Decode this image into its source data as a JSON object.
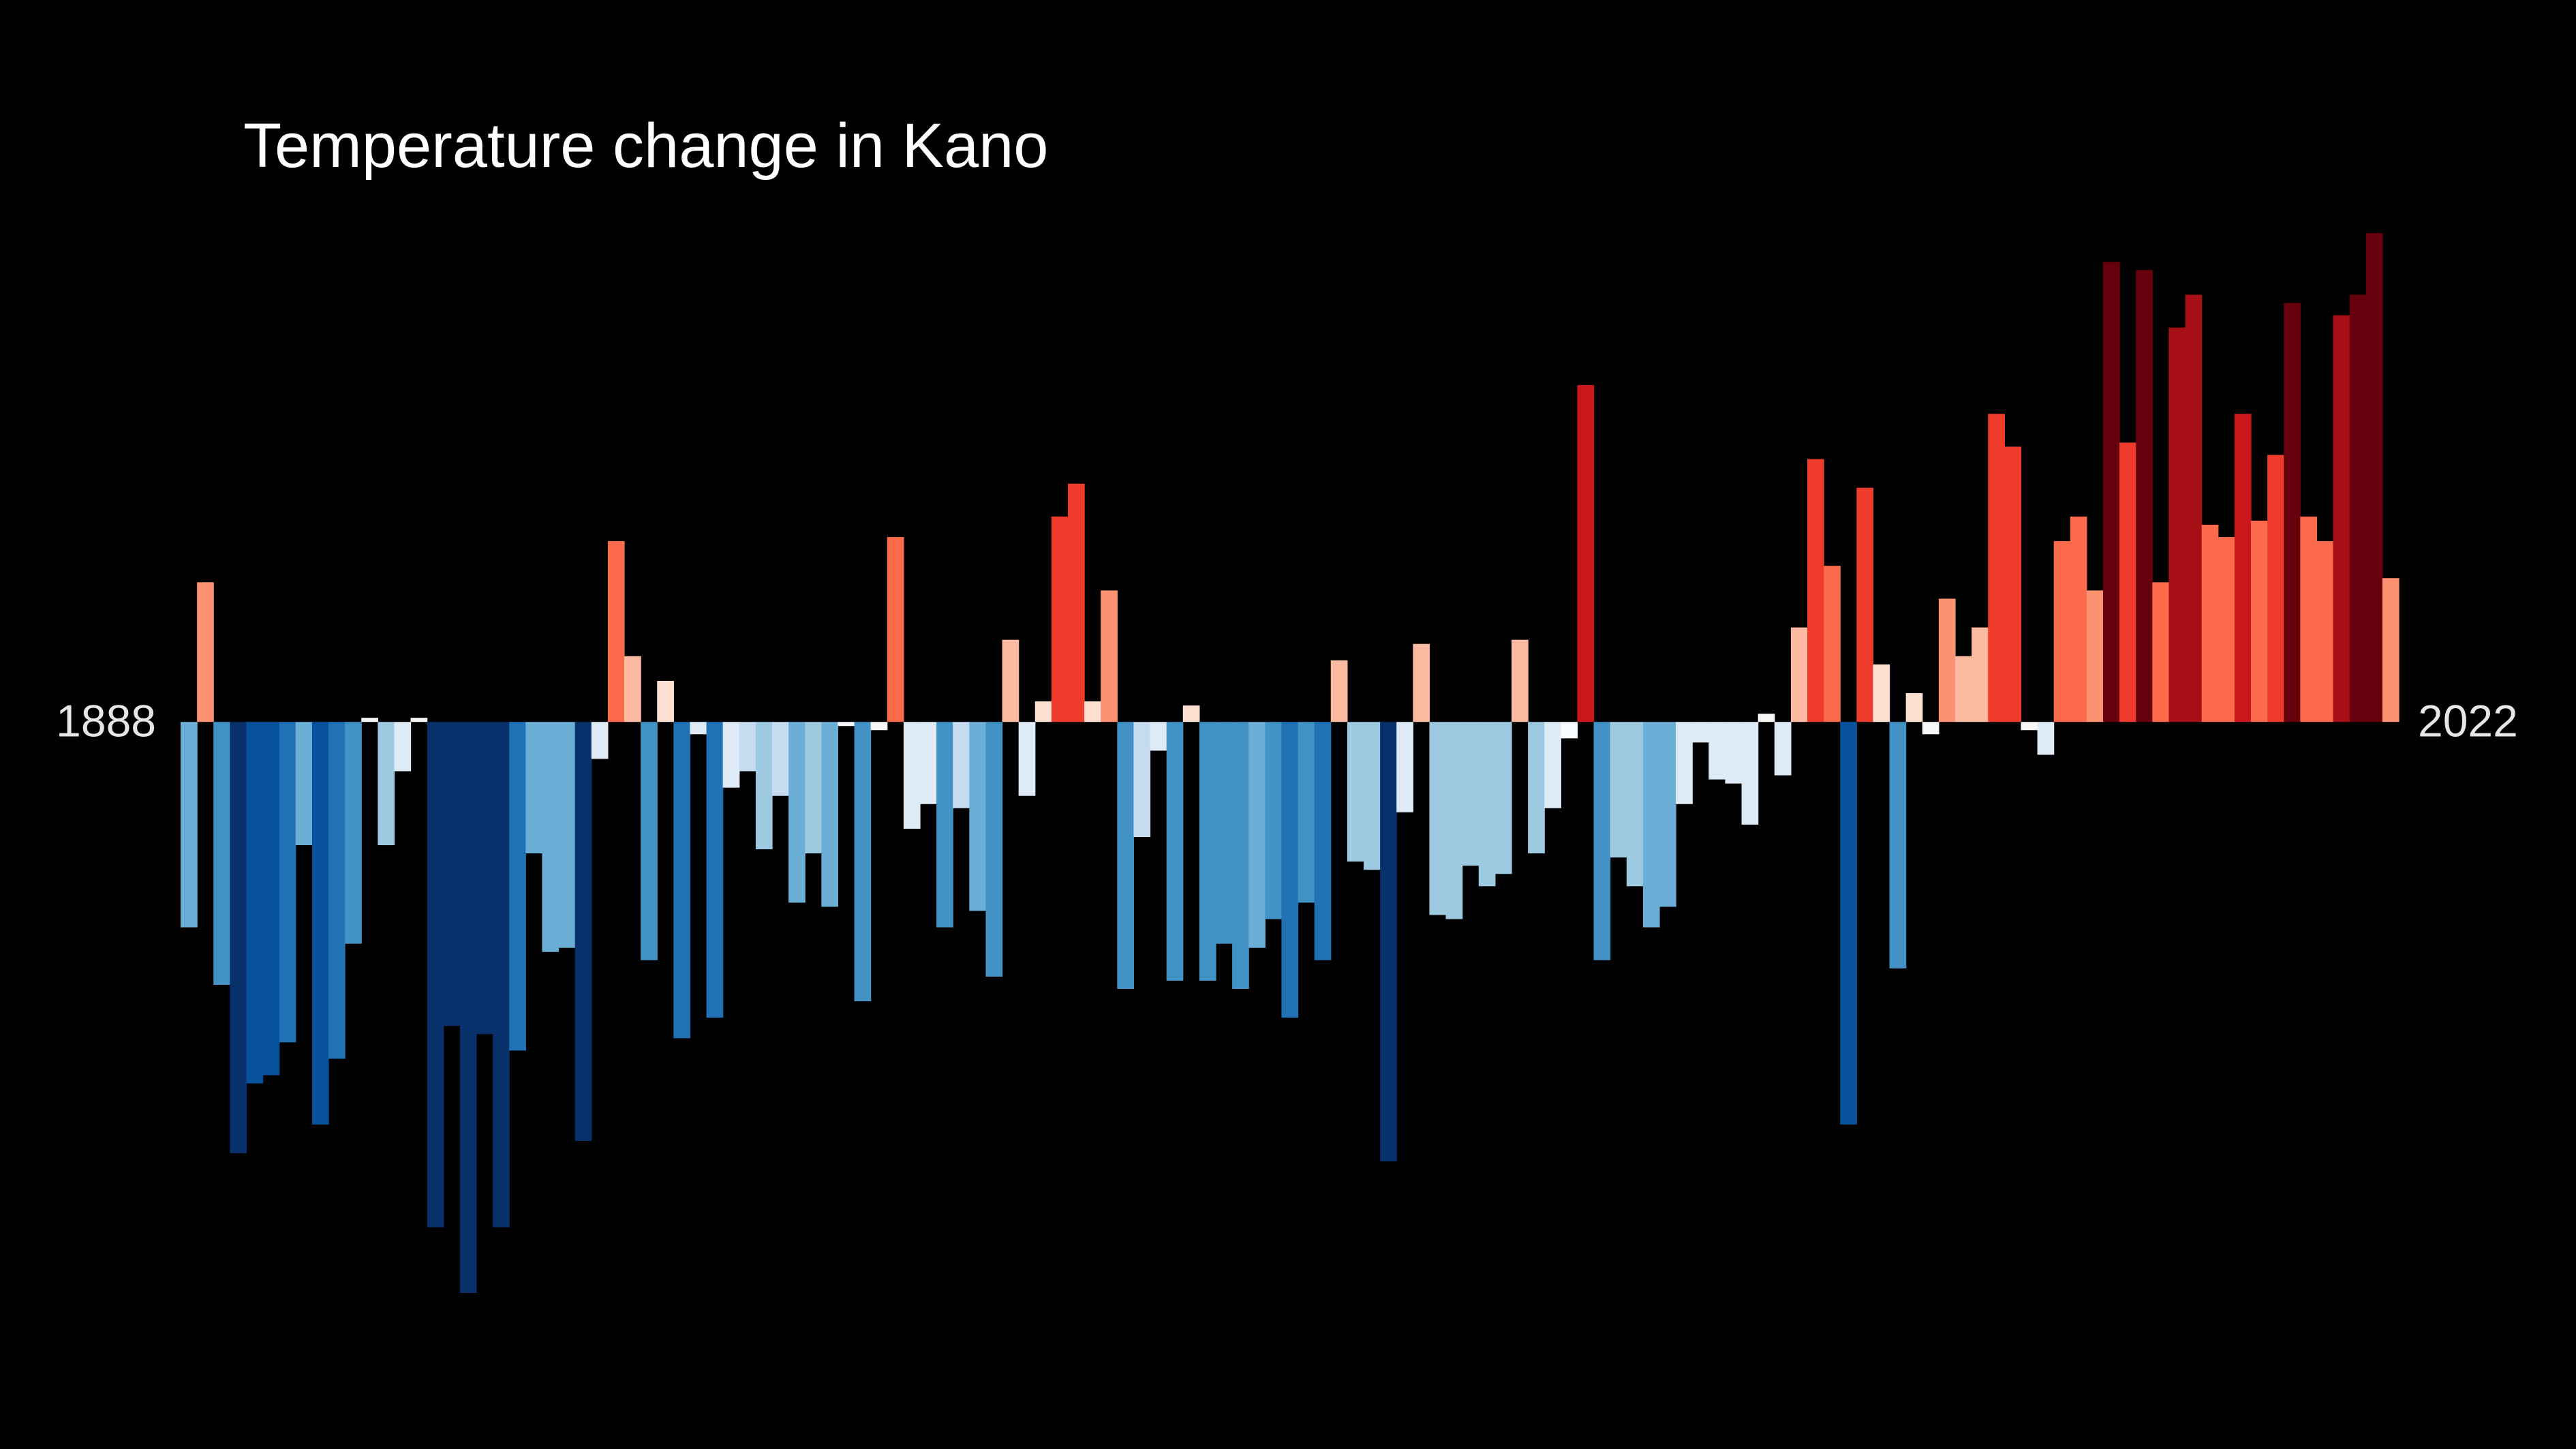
{
  "chart_data": {
    "type": "bar",
    "title": "Temperature change in Kano",
    "categories": [
      "1888",
      null,
      null,
      null,
      null,
      null,
      null,
      null,
      null,
      null,
      null,
      null,
      null,
      null,
      null,
      null,
      null,
      null,
      null,
      null,
      null,
      null,
      null,
      null,
      null,
      null,
      null,
      null,
      null,
      null,
      null,
      null,
      null,
      null,
      null,
      null,
      null,
      null,
      null,
      null,
      null,
      null,
      null,
      null,
      null,
      null,
      null,
      null,
      null,
      null,
      null,
      null,
      null,
      null,
      null,
      null,
      null,
      null,
      null,
      null,
      null,
      null,
      null,
      null,
      null,
      null,
      null,
      null,
      null,
      null,
      null,
      null,
      null,
      null,
      null,
      null,
      null,
      null,
      null,
      null,
      null,
      null,
      null,
      null,
      null,
      null,
      null,
      null,
      null,
      null,
      null,
      null,
      null,
      null,
      null,
      null,
      null,
      null,
      null,
      null,
      null,
      null,
      null,
      null,
      null,
      null,
      null,
      null,
      null,
      null,
      null,
      null,
      null,
      null,
      null,
      null,
      null,
      null,
      null,
      null,
      null,
      null,
      null,
      null,
      null,
      null,
      null,
      null,
      null,
      null,
      null,
      null,
      null,
      null,
      "2022"
    ],
    "values": [
      -0.5,
      0.34,
      -0.64,
      -1.05,
      -0.88,
      -0.86,
      -0.78,
      -0.3,
      -0.98,
      -0.82,
      -0.54,
      0.01,
      -0.3,
      -0.12,
      0.01,
      -1.23,
      -0.74,
      -1.39,
      -0.76,
      -1.23,
      -0.8,
      -0.32,
      -0.56,
      -0.55,
      -1.02,
      -0.09,
      0.44,
      0.16,
      -0.58,
      0.1,
      -0.77,
      -0.03,
      -0.72,
      -0.16,
      -0.12,
      -0.31,
      -0.18,
      -0.44,
      -0.32,
      -0.45,
      -0.01,
      -0.68,
      -0.02,
      0.45,
      -0.26,
      -0.2,
      -0.5,
      -0.21,
      -0.46,
      -0.62,
      0.2,
      -0.18,
      0.05,
      0.5,
      0.58,
      0.05,
      0.32,
      -0.65,
      -0.28,
      -0.07,
      -0.63,
      0.04,
      -0.63,
      -0.54,
      -0.65,
      -0.55,
      -0.48,
      -0.72,
      -0.44,
      -0.58,
      0.15,
      -0.34,
      -0.36,
      -1.07,
      -0.22,
      0.19,
      -0.47,
      -0.48,
      -0.35,
      -0.4,
      -0.37,
      0.2,
      -0.32,
      -0.21,
      -0.04,
      0.82,
      -0.58,
      -0.33,
      -0.4,
      -0.5,
      -0.45,
      -0.2,
      -0.05,
      -0.14,
      -0.15,
      -0.25,
      0.02,
      -0.13,
      0.23,
      0.64,
      0.38,
      -0.98,
      0.57,
      0.14,
      -0.6,
      0.07,
      -0.03,
      0.3,
      0.16,
      0.23,
      0.75,
      0.67,
      -0.02,
      -0.08,
      0.44,
      0.5,
      0.32,
      1.12,
      0.68,
      1.1,
      0.34,
      0.96,
      1.04,
      0.48,
      0.45,
      0.75,
      0.49,
      0.65,
      1.02,
      0.5,
      0.44,
      0.99,
      1.04,
      1.19,
      0.35
    ],
    "colors": [
      "#6baed6",
      "#fc9272",
      "#4292c6",
      "#08306b",
      "#08519c",
      "#08519c",
      "#2171b5",
      "#6baed6",
      "#08519c",
      "#2171b5",
      "#4292c6",
      "#f7f7f7",
      "#9ecae1",
      "#deebf7",
      "#f7f7f7",
      "#08306b",
      "#08306b",
      "#08306b",
      "#08306b",
      "#08306b",
      "#2171b5",
      "#6baed6",
      "#6baed6",
      "#6baed6",
      "#08306b",
      "#deebf7",
      "#fb6a4a",
      "#fcbba1",
      "#4292c6",
      "#fee0d2",
      "#2171b5",
      "#deebf7",
      "#2171b5",
      "#deebf7",
      "#c6dbef",
      "#9ecae1",
      "#c6dbef",
      "#6baed6",
      "#9ecae1",
      "#6baed6",
      "#f7fbff",
      "#4292c6",
      "#f7f7f7",
      "#fb6a4a",
      "#deebf7",
      "#deebf7",
      "#4292c6",
      "#c6dbef",
      "#6baed6",
      "#4292c6",
      "#fcbba1",
      "#deebf7",
      "#fee0d2",
      "#ef3b2c",
      "#ef3b2c",
      "#fee0d2",
      "#fc9272",
      "#4292c6",
      "#c6dbef",
      "#deebf7",
      "#4292c6",
      "#fee0d2",
      "#4292c6",
      "#4292c6",
      "#4292c6",
      "#6baed6",
      "#4292c6",
      "#2171b5",
      "#4292c6",
      "#2171b5",
      "#fcbba1",
      "#9ecae1",
      "#9ecae1",
      "#08306b",
      "#deebf7",
      "#fcbba1",
      "#9ecae1",
      "#9ecae1",
      "#9ecae1",
      "#9ecae1",
      "#9ecae1",
      "#fcbba1",
      "#9ecae1",
      "#deebf7",
      "#f7fbff",
      "#cb181d",
      "#4292c6",
      "#9ecae1",
      "#9ecae1",
      "#6baed6",
      "#6baed6",
      "#deebf7",
      "#deebf7",
      "#deebf7",
      "#deebf7",
      "#deebf7",
      "#f7f7f7",
      "#deebf7",
      "#fcbba1",
      "#ef3b2c",
      "#fb6a4a",
      "#08519c",
      "#ef3b2c",
      "#fee0d2",
      "#4292c6",
      "#fee0d2",
      "#f7f7f7",
      "#fc9272",
      "#fcbba1",
      "#fcbba1",
      "#ef3b2c",
      "#ef3b2c",
      "#f7f7f7",
      "#deebf7",
      "#fb6a4a",
      "#fb6a4a",
      "#fc9272",
      "#67000d",
      "#ef3b2c",
      "#67000d",
      "#fb6a4a",
      "#a50f15",
      "#a50f15",
      "#fb6a4a",
      "#fb6a4a",
      "#cb181d",
      "#fb6a4a",
      "#ef3b2c",
      "#67000d",
      "#fb6a4a",
      "#fb6a4a",
      "#a50f15",
      "#67000d",
      "#67000d",
      "#fc9272"
    ]
  }
}
